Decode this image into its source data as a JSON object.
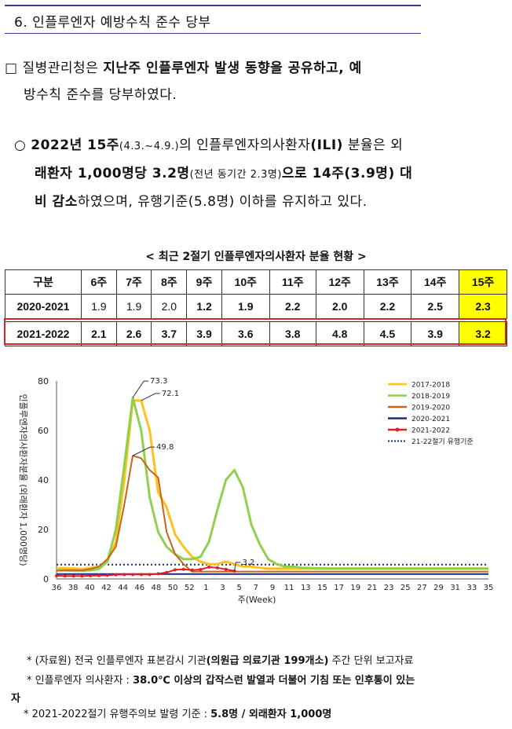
{
  "section_title": "6. 인플루엔자 예방수칙 준수 당부",
  "para1": {
    "bullet": "□",
    "text_a": "질병관리청은",
    "text_b": "지난주 인플루엔자 발생 동향을 공유하고, 예",
    "text_c": "방수칙 준수를 당부하였다."
  },
  "para2": {
    "bullet": "○",
    "l1_a": "2022년 15주",
    "l1_b": "(4.3.~4.9.)",
    "l1_c": "의 인플루엔자의사환자",
    "l1_d": "(ILI)",
    "l1_e": " 분율은 외",
    "l2_a": "래환자 1,000명당 3.2명",
    "l2_b": "(전년 동기간 2.3명)",
    "l2_c": "으로 14주(3.9명) 대",
    "l3_a": "비 감소",
    "l3_b": "하였으며, 유행기준(5.8명) 이하를 유지",
    "l3_c": "하고 있다."
  },
  "table": {
    "title": "< 최근 2절기 인플루엔자의사환자 분율 현황 >",
    "headers": [
      "구분",
      "6주",
      "7주",
      "8주",
      "9주",
      "10주",
      "11주",
      "12주",
      "13주",
      "14주",
      "15주"
    ],
    "rows": [
      [
        "2020-2021",
        "1.9",
        "1.9",
        "2.0",
        "1.2",
        "1.9",
        "2.2",
        "2.0",
        "2.2",
        "2.5",
        "2.3"
      ],
      [
        "2021-2022",
        "2.1",
        "2.6",
        "3.7",
        "3.9",
        "3.6",
        "3.8",
        "4.8",
        "4.5",
        "3.9",
        "3.2"
      ]
    ]
  },
  "chart_data": {
    "type": "line",
    "ylabel": "인플루엔자의사환자분율 (외래환자 1,000명당)",
    "xlabel": "주(Week)",
    "ylim": [
      0,
      80
    ],
    "yticks": [
      0,
      20,
      40,
      60,
      80
    ],
    "x_tick_labels": [
      "36",
      "38",
      "40",
      "42",
      "44",
      "46",
      "48",
      "50",
      "52",
      "1",
      "3",
      "5",
      "7",
      "9",
      "11",
      "13",
      "15",
      "17",
      "19",
      "21",
      "23",
      "25",
      "27",
      "29",
      "31",
      "33",
      "35"
    ],
    "annotations": [
      "73.3",
      "72.1",
      "49.8",
      "3.2"
    ],
    "threshold": {
      "name": "21-22절기 유행기준",
      "value": 5.8,
      "color": "#1b2a80"
    },
    "series": [
      {
        "name": "2017-2018",
        "color": "#ffc020",
        "values": [
          4.2,
          4.4,
          4.2,
          4.0,
          4.5,
          5,
          7,
          15,
          40,
          72.1,
          72.1,
          60,
          35,
          29,
          18,
          13,
          9,
          7,
          6,
          6,
          7,
          6,
          5,
          5,
          4.5,
          4.2,
          4.2,
          4.2,
          4.2,
          4.2,
          4.2,
          4.2,
          4.2,
          4.2,
          4.2,
          4.2,
          4.2,
          4.2,
          4.2,
          4.2,
          4.2,
          4.2,
          4.2,
          4.2,
          4.2,
          4.2,
          4.2,
          4.2,
          4.2,
          4.2,
          4.2,
          4.2
        ]
      },
      {
        "name": "2018-2019",
        "color": "#8fd14f",
        "values": [
          3.6,
          3.4,
          3.3,
          3.3,
          3.5,
          4,
          7,
          20,
          46,
          73.3,
          60,
          33,
          19,
          13,
          10,
          8,
          8,
          9,
          15,
          28,
          40,
          44,
          37,
          22,
          14,
          8,
          6,
          5,
          5,
          4.5,
          4.4,
          4.3,
          4.2,
          4.2,
          4.2,
          4.2,
          4.2,
          4.2,
          4.2,
          4.2,
          4.2,
          4.2,
          4.2,
          4.2,
          4.2,
          4.2,
          4.2,
          4.2,
          4.2,
          4.2,
          4.2,
          4.2
        ]
      },
      {
        "name": "2019-2020",
        "color": "#c8651b",
        "values": [
          3.3,
          3.6,
          3.6,
          3.5,
          4,
          5,
          8,
          13,
          30,
          49.8,
          48.8,
          44,
          41,
          19,
          10,
          6,
          3,
          3,
          3,
          3,
          3,
          3,
          3,
          3,
          3,
          3,
          3,
          3,
          3,
          3,
          3,
          3,
          3,
          3,
          3,
          3,
          3,
          3,
          3,
          3,
          3,
          3,
          3,
          3,
          3,
          3,
          3,
          3,
          3,
          3,
          3,
          3
        ]
      },
      {
        "name": "2020-2021",
        "color": "#1b2a80",
        "values": [
          2,
          2,
          2,
          2,
          2,
          2,
          2,
          2,
          2,
          2,
          2,
          2,
          2,
          2,
          2,
          2,
          2,
          2,
          2,
          2,
          2,
          2,
          2,
          2,
          2,
          2,
          2,
          2,
          2,
          2,
          2,
          2,
          2,
          2,
          2,
          2,
          2,
          2,
          2,
          2,
          2,
          2,
          2,
          2,
          2,
          2,
          2,
          2,
          2,
          2,
          2,
          2
        ]
      },
      {
        "name": "2021-2022",
        "color": "#e02020",
        "values": [
          1.3,
          1.2,
          1.2,
          1.2,
          1.3,
          1.4,
          1.5,
          1.7,
          1.8,
          1.8,
          1.8,
          1.8,
          2.1,
          2.6,
          3.7,
          3.9,
          3.6,
          3.8,
          4.8,
          4.5,
          3.9,
          3.2
        ]
      }
    ]
  },
  "notes": {
    "n1_a": "* (자료원) 전국 인플루엔자 표본감시 기관",
    "n1_b": "(의원급 의료기관 199개소)",
    "n1_c": " 주간 단위 보고자료",
    "n2_a": "* 인플루엔자 의사환자 : ",
    "n2_b": "38.0℃ 이상의 갑작스런 발열과 더불어 기침 또는 인후통이 있는",
    "n2_c": "자",
    "n3_a": "* 2021-2022절기 유행주의보 발령 기준 : ",
    "n3_b": "5.8명 / 외래환자 1,000명"
  },
  "colors": {
    "title_rule": "#2e3e8c",
    "highlight": "#ffff00",
    "outline": "#e02020"
  }
}
